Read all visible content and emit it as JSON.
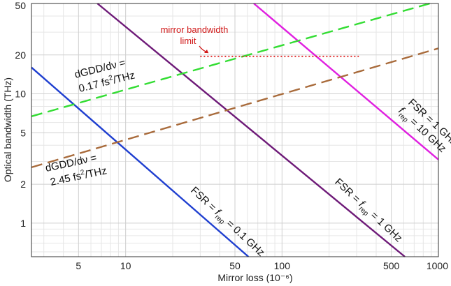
{
  "chart_data": {
    "type": "line",
    "title": "",
    "xlabel": "Mirror loss (10⁻⁶)",
    "ylabel": "Optical bandwidth (THz)",
    "xscale": "log",
    "yscale": "log",
    "xlim": [
      2.5,
      1000
    ],
    "ylim": [
      0.55,
      50
    ],
    "grid": true,
    "x_tick_labels": [
      {
        "value": 5,
        "label": "5"
      },
      {
        "value": 10,
        "label": "10"
      },
      {
        "value": 50,
        "label": "50"
      },
      {
        "value": 100,
        "label": "100"
      },
      {
        "value": 500,
        "label": "500"
      },
      {
        "value": 1000,
        "label": "1000"
      }
    ],
    "y_tick_labels": [
      {
        "value": 1,
        "label": "1"
      },
      {
        "value": 2,
        "label": "2"
      },
      {
        "value": 5,
        "label": "5"
      },
      {
        "value": 10,
        "label": "10"
      },
      {
        "value": 20,
        "label": "20"
      },
      {
        "value": 50,
        "label": "50"
      }
    ],
    "series": [
      {
        "name": "FSR = f_rep = 0.1 GHz",
        "color": "#1f3fd0",
        "style": "solid",
        "x": [
          2.5,
          61
        ],
        "y": [
          16,
          0.55
        ]
      },
      {
        "name": "FSR = f_rep = 1 GHz",
        "color": "#6e1a78",
        "style": "solid",
        "x": [
          6.6,
          610
        ],
        "y": [
          50,
          0.55
        ]
      },
      {
        "name": "FSR = 1 GHz, f_rep = 10 GHz",
        "color": "#e020e0",
        "style": "solid",
        "x": [
          66,
          1000
        ],
        "y": [
          50,
          3.1
        ]
      },
      {
        "name": "dGDD/dv = 0.17 fs2/THz",
        "color": "#33dd33",
        "style": "dashed",
        "x": [
          2.5,
          880
        ],
        "y": [
          6.7,
          50
        ]
      },
      {
        "name": "dGDD/dv = 2.45 fs2/THz",
        "color": "#a86a3a",
        "style": "dashed",
        "x": [
          2.5,
          1000
        ],
        "y": [
          2.7,
          22.5
        ]
      },
      {
        "name": "mirror bandwidth limit",
        "color": "#e02020",
        "style": "dotted",
        "x": [
          30,
          310
        ],
        "y": [
          19.5,
          19.5
        ]
      }
    ],
    "annotations": {
      "mirror_limit": [
        "mirror bandwidth",
        "limit"
      ],
      "gdd_a_line1": "dGDD/dν =",
      "gdd_a_line2": "0.17 fs",
      "gdd_b_line1": "dGDD/dν =",
      "gdd_b_line2": "2.45 fs",
      "gdd_sup": "2",
      "gdd_unit": "/THz",
      "fsr_blue": {
        "a": "FSR = ",
        "f": "f",
        "sub": "rep",
        "b": " = 0.1 GHz"
      },
      "fsr_purple": {
        "a": "FSR = ",
        "f": "f",
        "sub": "rep",
        "b": " = 1 GHz"
      },
      "fsr_magenta_line1": "FSR = 1 GHz,",
      "fsr_magenta_line2": {
        "f": "f",
        "sub": "rep",
        "b": " = 10 GHz"
      }
    }
  }
}
